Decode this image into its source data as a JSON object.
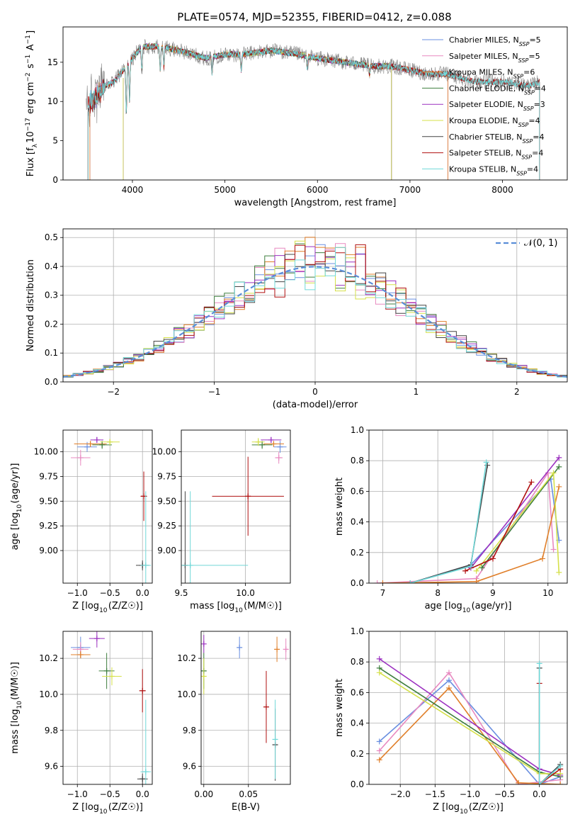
{
  "title": "PLATE=0574, MJD=52355, FIBERID=0412, z=0.088",
  "colors": {
    "Chabrier MILES": "#6a8fe0",
    "Salpeter MILES": "#e889c0",
    "Kroupa MILES": "#e07f2a",
    "Chabrier ELODIE": "#3f7f3f",
    "Salpeter ELODIE": "#9b30c0",
    "Kroupa ELODIE": "#d5e04a",
    "Chabrier STELIB": "#444444",
    "Salpeter STELIB": "#b01010",
    "Kroupa STELIB": "#70d8d8",
    "data": "#808080",
    "normal": "#5a8ed8"
  },
  "chart_data": [
    {
      "id": "spectrum",
      "type": "line",
      "xlabel": "wavelength [Angstrom, rest frame]",
      "ylabel": "Flux [f_λ10^-17 erg cm^-2 s^-1 A^-1]",
      "xlim": [
        3250,
        8700
      ],
      "ylim": [
        0,
        19.5
      ],
      "xticks": [
        "4000",
        "5000",
        "6000",
        "7000",
        "8000"
      ],
      "yticks": [
        "0",
        "5",
        "10",
        "15"
      ],
      "legend_position": "upper-right",
      "legend": [
        {
          "model": "Chabrier MILES",
          "nssp": "5"
        },
        {
          "model": "Salpeter MILES",
          "nssp": "5"
        },
        {
          "model": "Kroupa MILES",
          "nssp": "6"
        },
        {
          "model": "Chabrier ELODIE",
          "nssp": "4"
        },
        {
          "model": "Salpeter ELODIE",
          "nssp": "3"
        },
        {
          "model": "Kroupa ELODIE",
          "nssp": "4"
        },
        {
          "model": "Chabrier STELIB",
          "nssp": "4"
        },
        {
          "model": "Salpeter STELIB",
          "nssp": "4"
        },
        {
          "model": "Kroupa STELIB",
          "nssp": "4"
        }
      ],
      "continuum": {
        "x": [
          3500,
          3600,
          3700,
          3800,
          3900,
          4000,
          4100,
          4300,
          4500,
          4800,
          5000,
          5200,
          5500,
          5800,
          6000,
          6300,
          6600,
          6800,
          7000,
          7200,
          7400,
          7700,
          8000,
          8300,
          8400
        ],
        "y": [
          9.5,
          10.5,
          12.0,
          12.5,
          14.0,
          15.5,
          17.0,
          17.0,
          16.5,
          15.5,
          16.0,
          16.0,
          16.5,
          16.0,
          15.5,
          15.0,
          14.5,
          14.5,
          14.0,
          13.5,
          13.5,
          12.5,
          12.5,
          12.0,
          12.5
        ]
      }
    },
    {
      "id": "residuals",
      "type": "histogram",
      "xlabel": "(data-model)/error",
      "ylabel": "Normed distribution",
      "xlim": [
        -2.5,
        2.5
      ],
      "ylim": [
        0,
        0.53
      ],
      "xticks": [
        "−2",
        "−1",
        "0",
        "1",
        "2"
      ],
      "yticks": [
        "0.0",
        "0.1",
        "0.2",
        "0.3",
        "0.4",
        "0.5"
      ],
      "reference_label": "𝒩(0, 1)",
      "legend_position": "upper-right"
    },
    {
      "id": "age-vs-Z",
      "type": "scatter",
      "xlabel": "Z [log10(Z/Z☉)]",
      "ylabel": "age [log10(age/yr)]",
      "xlim": [
        -1.22,
        0.15
      ],
      "ylim": [
        8.67,
        10.22
      ],
      "xticks": [
        "−1.0",
        "−0.5",
        "0.0"
      ],
      "yticks": [
        "9.00",
        "9.25",
        "9.50",
        "9.75",
        "10.00"
      ],
      "points": [
        {
          "model": "Chabrier MILES",
          "x": -0.85,
          "y": 10.05,
          "xerr": 0.15,
          "yerr": 0.05
        },
        {
          "model": "Salpeter MILES",
          "x": -0.95,
          "y": 9.94,
          "xerr": 0.15,
          "yerr": 0.08
        },
        {
          "model": "Kroupa MILES",
          "x": -0.8,
          "y": 10.08,
          "xerr": 0.25,
          "yerr": 0.03
        },
        {
          "model": "Chabrier ELODIE",
          "x": -0.62,
          "y": 10.07,
          "xerr": 0.15,
          "yerr": 0.04
        },
        {
          "model": "Salpeter ELODIE",
          "x": -0.7,
          "y": 10.12,
          "xerr": 0.1,
          "yerr": 0.03
        },
        {
          "model": "Kroupa ELODIE",
          "x": -0.5,
          "y": 10.1,
          "xerr": 0.15,
          "yerr": 0.03
        },
        {
          "model": "Chabrier STELIB",
          "x": 0.0,
          "y": 8.85,
          "xerr": 0.1,
          "yerr": 0.05
        },
        {
          "model": "Salpeter STELIB",
          "x": 0.02,
          "y": 9.55,
          "xerr": 0.05,
          "yerr": 0.25
        },
        {
          "model": "Kroupa STELIB",
          "x": 0.05,
          "y": 8.85,
          "xerr": 0.08,
          "yerr": 0.75
        }
      ]
    },
    {
      "id": "age-vs-mass",
      "type": "scatter",
      "xlabel": "mass [log10(M/M☉)]",
      "ylabel": "",
      "xlim": [
        9.5,
        10.35
      ],
      "ylim": [
        8.67,
        10.22
      ],
      "xticks": [
        "9.5",
        "10.0"
      ],
      "yticks": [
        "9.00",
        "9.25",
        "9.50",
        "9.75",
        "10.00"
      ],
      "points": [
        {
          "model": "Chabrier MILES",
          "x": 10.27,
          "y": 10.05,
          "xerr": 0.05,
          "yerr": 0.06
        },
        {
          "model": "Salpeter MILES",
          "x": 10.26,
          "y": 9.94,
          "xerr": 0.03,
          "yerr": 0.06
        },
        {
          "model": "Kroupa MILES",
          "x": 10.22,
          "y": 10.08,
          "xerr": 0.08,
          "yerr": 0.03
        },
        {
          "model": "Chabrier ELODIE",
          "x": 10.13,
          "y": 10.07,
          "xerr": 0.08,
          "yerr": 0.04
        },
        {
          "model": "Salpeter ELODIE",
          "x": 10.2,
          "y": 10.12,
          "xerr": 0.08,
          "yerr": 0.03
        },
        {
          "model": "Kroupa ELODIE",
          "x": 10.1,
          "y": 10.1,
          "xerr": 0.05,
          "yerr": 0.04
        },
        {
          "model": "Chabrier STELIB",
          "x": 9.53,
          "y": 8.85,
          "xerr": 0.02,
          "yerr": 0.75
        },
        {
          "model": "Salpeter STELIB",
          "x": 10.02,
          "y": 9.55,
          "xerr": 0.28,
          "yerr": 0.4
        },
        {
          "model": "Kroupa STELIB",
          "x": 9.57,
          "y": 8.85,
          "xerr": 0.45,
          "yerr": 0.75
        }
      ]
    },
    {
      "id": "massweight-vs-age",
      "type": "line",
      "xlabel": "age [log10(age/yr)]",
      "ylabel": "mass weight",
      "xlim": [
        6.75,
        10.35
      ],
      "ylim": [
        0,
        1.0
      ],
      "xticks": [
        "7",
        "8",
        "9",
        "10"
      ],
      "yticks": [
        "0.0",
        "0.2",
        "0.4",
        "0.6",
        "0.8",
        "1.0"
      ],
      "series": [
        {
          "model": "Chabrier MILES",
          "x": [
            7.5,
            8.6,
            10.05,
            10.2
          ],
          "y": [
            0.0,
            0.12,
            0.68,
            0.28
          ]
        },
        {
          "model": "Salpeter MILES",
          "x": [
            6.9,
            8.7,
            10.0,
            10.1
          ],
          "y": [
            0.0,
            0.03,
            0.72,
            0.22
          ]
        },
        {
          "model": "Kroupa MILES",
          "x": [
            7.0,
            8.7,
            9.9,
            10.2
          ],
          "y": [
            0.0,
            0.01,
            0.16,
            0.63
          ]
        },
        {
          "model": "Chabrier ELODIE",
          "x": [
            8.8,
            10.2
          ],
          "y": [
            0.1,
            0.76
          ]
        },
        {
          "model": "Salpeter ELODIE",
          "x": [
            8.6,
            10.2
          ],
          "y": [
            0.1,
            0.82
          ]
        },
        {
          "model": "Kroupa ELODIE",
          "x": [
            8.7,
            10.1,
            10.2
          ],
          "y": [
            0.08,
            0.72,
            0.07
          ]
        },
        {
          "model": "Chabrier STELIB",
          "x": [
            7.5,
            8.6,
            8.9
          ],
          "y": [
            0.0,
            0.12,
            0.77
          ]
        },
        {
          "model": "Salpeter STELIB",
          "x": [
            8.5,
            9.0,
            9.7
          ],
          "y": [
            0.08,
            0.16,
            0.66
          ]
        },
        {
          "model": "Kroupa STELIB",
          "x": [
            7.5,
            8.6,
            8.88
          ],
          "y": [
            0.0,
            0.11,
            0.79
          ]
        }
      ]
    },
    {
      "id": "mass-vs-Z",
      "type": "scatter",
      "xlabel": "Z [log10(Z/Z☉)]",
      "ylabel": "mass [log10(M/M☉)]",
      "xlim": [
        -1.22,
        0.15
      ],
      "ylim": [
        9.5,
        10.35
      ],
      "xticks": [
        "−1.0",
        "−0.5",
        "0.0"
      ],
      "yticks": [
        "9.6",
        "9.8",
        "10.0",
        "10.2"
      ],
      "points": [
        {
          "model": "Chabrier MILES",
          "x": -0.95,
          "y": 10.26,
          "xerr": 0.15,
          "yerr": 0.06
        },
        {
          "model": "Salpeter MILES",
          "x": -0.95,
          "y": 10.25,
          "xerr": 0.12,
          "yerr": 0.04
        },
        {
          "model": "Kroupa MILES",
          "x": -0.95,
          "y": 10.22,
          "xerr": 0.15,
          "yerr": 0.02
        },
        {
          "model": "Chabrier ELODIE",
          "x": -0.55,
          "y": 10.13,
          "xerr": 0.12,
          "yerr": 0.1
        },
        {
          "model": "Salpeter ELODIE",
          "x": -0.7,
          "y": 10.31,
          "xerr": 0.12,
          "yerr": 0.05
        },
        {
          "model": "Kroupa ELODIE",
          "x": -0.47,
          "y": 10.1,
          "xerr": 0.15,
          "yerr": 0.05
        },
        {
          "model": "Chabrier STELIB",
          "x": 0.0,
          "y": 9.53,
          "xerr": 0.08,
          "yerr": 0.03
        },
        {
          "model": "Salpeter STELIB",
          "x": 0.0,
          "y": 10.02,
          "xerr": 0.05,
          "yerr": 0.12
        },
        {
          "model": "Kroupa STELIB",
          "x": 0.05,
          "y": 9.57,
          "xerr": 0.08,
          "yerr": 0.4
        }
      ]
    },
    {
      "id": "mass-vs-ebv",
      "type": "scatter",
      "xlabel": "E(B-V)",
      "ylabel": "",
      "xlim": [
        -0.003,
        0.097
      ],
      "ylim": [
        9.5,
        10.35
      ],
      "xticks": [
        "0.00",
        "0.05"
      ],
      "yticks": [
        "9.6",
        "9.8",
        "10.0",
        "10.2"
      ],
      "points": [
        {
          "model": "Chabrier MILES",
          "x": 0.04,
          "y": 10.26,
          "yerr": 0.06
        },
        {
          "model": "Salpeter MILES",
          "x": 0.092,
          "y": 10.25,
          "yerr": 0.06
        },
        {
          "model": "Kroupa MILES",
          "x": 0.082,
          "y": 10.25,
          "yerr": 0.07
        },
        {
          "model": "Chabrier ELODIE",
          "x": 0.0,
          "y": 10.13,
          "yerr": 0.1
        },
        {
          "model": "Salpeter ELODIE",
          "x": 0.0,
          "y": 10.28,
          "yerr": 0.05
        },
        {
          "model": "Kroupa ELODIE",
          "x": 0.0,
          "y": 10.1,
          "yerr": 0.1
        },
        {
          "model": "Chabrier STELIB",
          "x": 0.08,
          "y": 9.72,
          "yerr": 0.2
        },
        {
          "model": "Salpeter STELIB",
          "x": 0.07,
          "y": 9.93,
          "yerr": 0.2
        },
        {
          "model": "Kroupa STELIB",
          "x": 0.08,
          "y": 9.75,
          "yerr": 0.22
        }
      ]
    },
    {
      "id": "massweight-vs-Z",
      "type": "line",
      "xlabel": "Z [log10(Z/Z☉)]",
      "ylabel": "mass weight",
      "xlim": [
        -2.45,
        0.4
      ],
      "ylim": [
        0,
        1.0
      ],
      "xticks": [
        "−2.0",
        "−1.5",
        "−1.0",
        "−0.5",
        "0.0"
      ],
      "yticks": [
        "0.0",
        "0.2",
        "0.4",
        "0.6",
        "0.8",
        "1.0"
      ],
      "series": [
        {
          "model": "Chabrier MILES",
          "x": [
            -2.3,
            -1.3,
            0.0,
            0.3
          ],
          "y": [
            0.28,
            0.68,
            0.0,
            0.05
          ]
        },
        {
          "model": "Salpeter MILES",
          "x": [
            -2.3,
            -1.3,
            -0.3,
            0.3
          ],
          "y": [
            0.22,
            0.73,
            0.0,
            0.03
          ]
        },
        {
          "model": "Kroupa MILES",
          "x": [
            -2.3,
            -1.3,
            -0.3,
            0.3
          ],
          "y": [
            0.16,
            0.63,
            0.01,
            0.0
          ]
        },
        {
          "model": "Chabrier ELODIE",
          "x": [
            -2.3,
            0.0,
            0.3
          ],
          "y": [
            0.76,
            0.08,
            0.05
          ]
        },
        {
          "model": "Salpeter ELODIE",
          "x": [
            -2.3,
            0.0,
            0.3
          ],
          "y": [
            0.82,
            0.1,
            0.06
          ]
        },
        {
          "model": "Kroupa ELODIE",
          "x": [
            -2.3,
            0.0,
            0.3
          ],
          "y": [
            0.73,
            0.07,
            0.07
          ]
        },
        {
          "model": "Chabrier STELIB",
          "x": [
            0.0,
            0.0,
            0.3
          ],
          "y": [
            0.76,
            0.0,
            0.13
          ]
        },
        {
          "model": "Salpeter STELIB",
          "x": [
            0.0,
            0.0,
            0.3
          ],
          "y": [
            0.66,
            0.0,
            0.1
          ]
        },
        {
          "model": "Kroupa STELIB",
          "x": [
            0.0,
            0.0,
            0.3
          ],
          "y": [
            0.79,
            0.0,
            0.12
          ]
        }
      ]
    }
  ]
}
